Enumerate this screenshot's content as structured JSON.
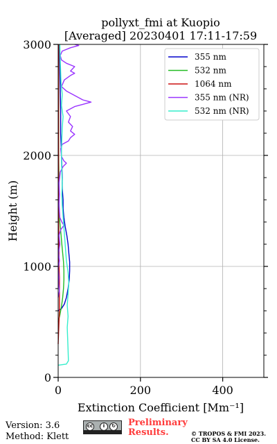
{
  "chart_data": {
    "type": "line",
    "title": "pollyxt_fmi at Kuopio",
    "subtitle": "[Averaged] 20230401 17:11-17:59",
    "xlabel": "Extinction Coefficient [Mm⁻¹]",
    "ylabel": "Height (m)",
    "xlim": [
      0,
      500
    ],
    "ylim": [
      0,
      3000
    ],
    "xticks": [
      0,
      200,
      400
    ],
    "yticks": [
      0,
      1000,
      2000,
      3000
    ],
    "grid": true,
    "legend_position": "top-right",
    "series": [
      {
        "name": "355 nm",
        "color": "#0000cc",
        "points": [
          [
            0,
            600
          ],
          [
            8,
            620
          ],
          [
            15,
            660
          ],
          [
            20,
            720
          ],
          [
            24,
            800
          ],
          [
            27,
            880
          ],
          [
            28,
            960
          ],
          [
            28,
            1040
          ],
          [
            26,
            1120
          ],
          [
            24,
            1200
          ],
          [
            21,
            1280
          ],
          [
            17,
            1360
          ],
          [
            14,
            1440
          ],
          [
            12,
            1520
          ],
          [
            12,
            1600
          ],
          [
            10,
            1700
          ],
          [
            10,
            1800
          ],
          [
            9,
            1900
          ],
          [
            8,
            2000
          ],
          [
            7,
            2100
          ],
          [
            6,
            2200
          ],
          [
            6,
            2400
          ],
          [
            5,
            2600
          ],
          [
            4,
            2800
          ],
          [
            3,
            3000
          ]
        ]
      },
      {
        "name": "532 nm",
        "color": "#22bb22",
        "points": [
          [
            0,
            500
          ],
          [
            4,
            560
          ],
          [
            8,
            640
          ],
          [
            11,
            720
          ],
          [
            13,
            800
          ],
          [
            14,
            880
          ],
          [
            14,
            960
          ],
          [
            13,
            1040
          ],
          [
            11,
            1120
          ],
          [
            9,
            1200
          ],
          [
            7,
            1280
          ],
          [
            5,
            1360
          ],
          [
            3,
            1440
          ],
          [
            2,
            1600
          ],
          [
            2,
            1800
          ],
          [
            1,
            2000
          ],
          [
            1,
            2400
          ],
          [
            1,
            2800
          ],
          [
            1,
            3000
          ]
        ]
      },
      {
        "name": "1064 nm",
        "color": "#cc1111",
        "points": [
          [
            0,
            300
          ],
          [
            1,
            400
          ],
          [
            2,
            500
          ],
          [
            3,
            600
          ],
          [
            3,
            700
          ],
          [
            3,
            800
          ],
          [
            3,
            900
          ],
          [
            2,
            1000
          ],
          [
            2,
            1100
          ],
          [
            2,
            1200
          ],
          [
            1,
            1400
          ],
          [
            1,
            1600
          ],
          [
            1,
            2000
          ],
          [
            1,
            2500
          ],
          [
            1,
            3000
          ]
        ]
      },
      {
        "name": "355 nm (NR)",
        "color": "#9933ff",
        "points": [
          [
            0,
            720
          ],
          [
            3,
            780
          ],
          [
            1,
            850
          ],
          [
            2,
            900
          ],
          [
            0,
            980
          ],
          [
            3,
            1050
          ],
          [
            1,
            1120
          ],
          [
            4,
            1200
          ],
          [
            2,
            1280
          ],
          [
            6,
            1330
          ],
          [
            14,
            1370
          ],
          [
            9,
            1400
          ],
          [
            4,
            1440
          ],
          [
            2,
            1550
          ],
          [
            3,
            1650
          ],
          [
            2,
            1750
          ],
          [
            5,
            1850
          ],
          [
            12,
            1900
          ],
          [
            20,
            1930
          ],
          [
            14,
            1950
          ],
          [
            8,
            1990
          ],
          [
            6,
            2060
          ],
          [
            10,
            2100
          ],
          [
            25,
            2130
          ],
          [
            30,
            2160
          ],
          [
            40,
            2190
          ],
          [
            30,
            2220
          ],
          [
            35,
            2260
          ],
          [
            25,
            2300
          ],
          [
            30,
            2350
          ],
          [
            20,
            2400
          ],
          [
            40,
            2440
          ],
          [
            60,
            2460
          ],
          [
            80,
            2480
          ],
          [
            60,
            2500
          ],
          [
            40,
            2540
          ],
          [
            20,
            2580
          ],
          [
            8,
            2620
          ],
          [
            15,
            2680
          ],
          [
            30,
            2720
          ],
          [
            40,
            2740
          ],
          [
            30,
            2760
          ],
          [
            40,
            2800
          ],
          [
            20,
            2830
          ],
          [
            8,
            2860
          ],
          [
            5,
            2900
          ],
          [
            10,
            2940
          ],
          [
            30,
            2970
          ],
          [
            50,
            2990
          ],
          [
            40,
            3000
          ]
        ]
      },
      {
        "name": "532 nm (NR)",
        "color": "#33eecc",
        "points": [
          [
            0,
            110
          ],
          [
            20,
            120
          ],
          [
            25,
            150
          ],
          [
            24,
            250
          ],
          [
            23,
            350
          ],
          [
            22,
            450
          ],
          [
            24,
            550
          ],
          [
            22,
            650
          ],
          [
            24,
            750
          ],
          [
            26,
            850
          ],
          [
            24,
            950
          ],
          [
            20,
            1050
          ],
          [
            18,
            1150
          ],
          [
            16,
            1250
          ],
          [
            14,
            1350
          ],
          [
            12,
            1450
          ],
          [
            10,
            1550
          ],
          [
            9,
            1650
          ],
          [
            10,
            1750
          ],
          [
            9,
            1850
          ],
          [
            8,
            1950
          ],
          [
            8,
            2050
          ],
          [
            9,
            2150
          ],
          [
            10,
            2250
          ],
          [
            12,
            2350
          ],
          [
            8,
            2450
          ],
          [
            10,
            2550
          ],
          [
            7,
            2650
          ],
          [
            6,
            2750
          ],
          [
            5,
            2850
          ],
          [
            4,
            3000
          ]
        ]
      }
    ]
  },
  "footer": {
    "version": "Version: 3.6",
    "method": "Method: Klett",
    "preliminary_1": "Preliminary",
    "preliminary_2": "Results.",
    "copyright_1": "© TROPOS & FMI 2023.",
    "copyright_2": "CC BY SA 4.0 License."
  }
}
